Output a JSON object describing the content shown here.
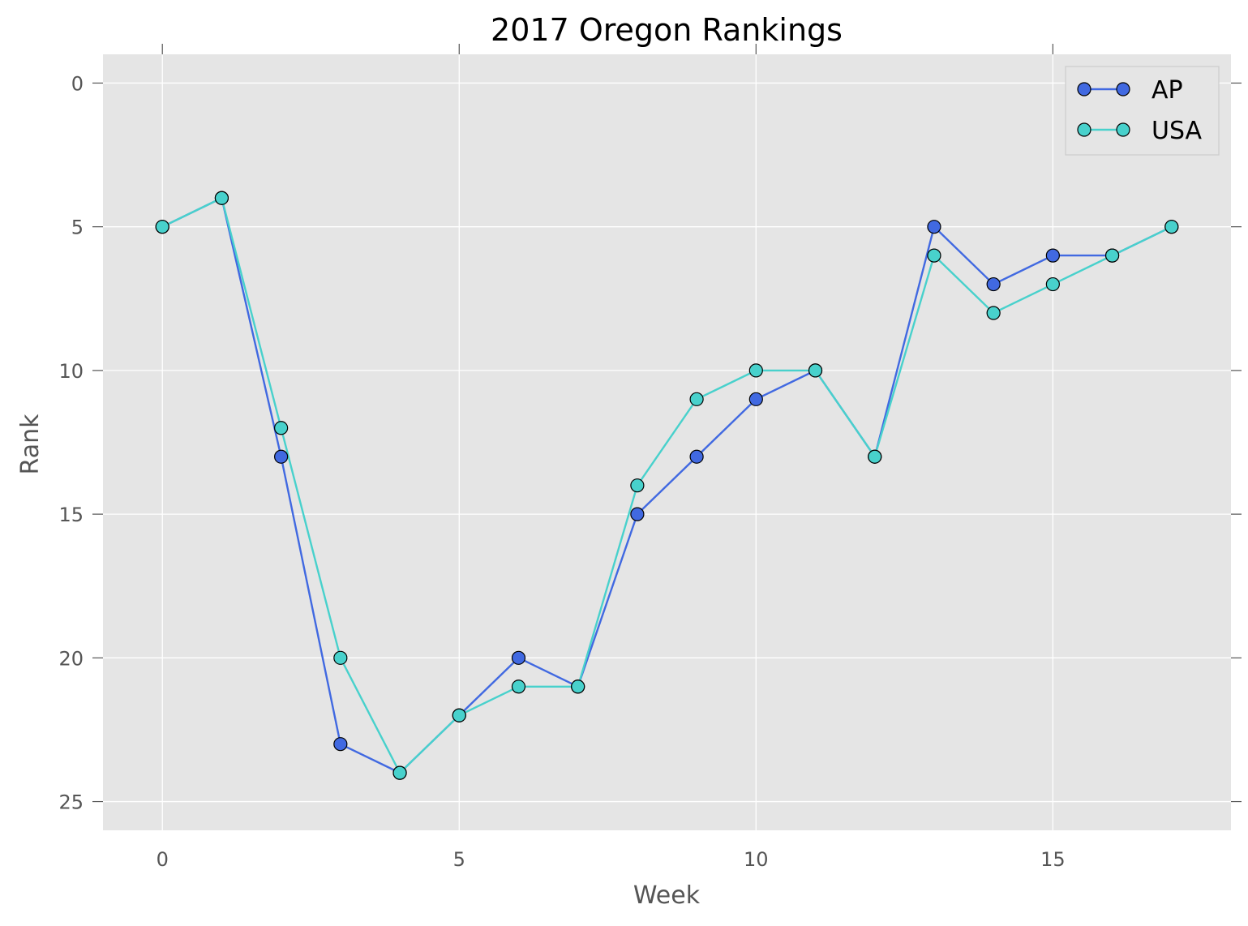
{
  "chart_data": {
    "type": "line",
    "title": "2017 Oregon Rankings",
    "xlabel": "Week",
    "ylabel": "Rank",
    "xlim": [
      -1,
      18
    ],
    "ylim": [
      26,
      -1
    ],
    "y_inverted": true,
    "xticks": [
      0,
      5,
      10,
      15
    ],
    "yticks": [
      0,
      5,
      10,
      15,
      20,
      25
    ],
    "grid": true,
    "legend_position": "top-right",
    "x": [
      0,
      1,
      2,
      3,
      4,
      5,
      6,
      7,
      8,
      9,
      10,
      11,
      12,
      13,
      14,
      15,
      16,
      17
    ],
    "series": [
      {
        "name": "AP",
        "color": "#4169e1",
        "values": [
          5,
          4,
          13,
          23,
          24,
          22,
          20,
          21,
          15,
          13,
          11,
          10,
          13,
          5,
          7,
          6,
          6,
          5
        ]
      },
      {
        "name": "USA",
        "color": "#48d1cc",
        "values": [
          5,
          4,
          12,
          20,
          24,
          22,
          21,
          21,
          14,
          11,
          10,
          10,
          13,
          6,
          8,
          7,
          6,
          5
        ]
      }
    ]
  }
}
